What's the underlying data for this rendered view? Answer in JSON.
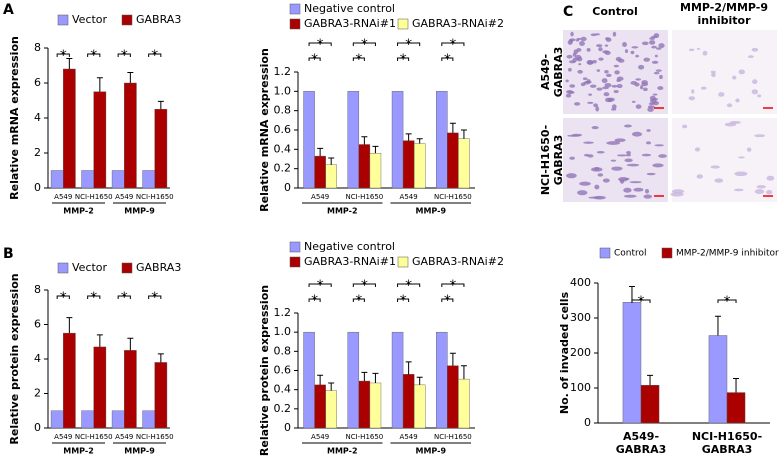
{
  "panels": [
    "A",
    "B",
    "C"
  ],
  "images": {
    "columns": [
      [
        "Control"
      ],
      [
        "MMP-2/MMP-9",
        "inhibitor"
      ]
    ],
    "rows": [
      [
        "A549-",
        "GABRA3"
      ],
      [
        "NCI-H1650-",
        "GABRA3"
      ]
    ]
  },
  "chart_data": [
    {
      "type": "bar",
      "ylabel": "Relative mRNA expression",
      "categories": [
        "A549",
        "NCI-H1650",
        "A549",
        "NCI-H1650"
      ],
      "groups": [
        "MMP-2",
        "MMP-9"
      ],
      "series": [
        {
          "name": "Vector",
          "color": "#9999ff",
          "values": [
            1,
            1,
            1,
            1
          ]
        },
        {
          "name": "GABRA3",
          "color": "#aa0000",
          "values": [
            6.8,
            5.5,
            6,
            4.5
          ],
          "errors": [
            0.6,
            0.8,
            0.6,
            0.45
          ]
        }
      ],
      "significance": [
        "*",
        "*",
        "*",
        "*"
      ],
      "ylim": [
        0,
        8
      ],
      "yticks": [
        0,
        2,
        4,
        6,
        8
      ]
    },
    {
      "type": "bar",
      "ylabel": "Relative mRNA expression",
      "categories": [
        "A549",
        "NCI-H1650",
        "A549",
        "NCI-H1650"
      ],
      "groups": [
        "MMP-2",
        "MMP-9"
      ],
      "series": [
        {
          "name": "Negative control",
          "color": "#9999ff",
          "values": [
            1,
            1,
            1,
            1
          ]
        },
        {
          "name": "GABRA3-RNAi#1",
          "color": "#aa0000",
          "values": [
            0.33,
            0.45,
            0.49,
            0.57
          ],
          "errors": [
            0.08,
            0.08,
            0.07,
            0.1
          ]
        },
        {
          "name": "GABRA3-RNAi#2",
          "color": "#ffff99",
          "values": [
            0.24,
            0.36,
            0.46,
            0.51
          ],
          "errors": [
            0.07,
            0.07,
            0.05,
            0.09
          ]
        }
      ],
      "significance": [
        [
          "*",
          "*"
        ],
        [
          "*",
          "*"
        ],
        [
          "*",
          "*"
        ],
        [
          "*",
          "*"
        ]
      ],
      "ylim": [
        0,
        1.2
      ],
      "yticks": [
        0,
        0.2,
        0.4,
        0.6,
        0.8,
        {
          "value": 1,
          "label": "1.0"
        },
        1.2
      ]
    },
    {
      "type": "bar",
      "ylabel": "Relative protein expression",
      "categories": [
        "A549",
        "NCI-H1650",
        "A549",
        "NCI-H1650"
      ],
      "groups": [
        "MMP-2",
        "MMP-9"
      ],
      "series": [
        {
          "name": "Vector",
          "color": "#9999ff",
          "values": [
            1,
            1,
            1,
            1
          ]
        },
        {
          "name": "GABRA3",
          "color": "#aa0000",
          "values": [
            5.5,
            4.7,
            4.5,
            3.8
          ],
          "errors": [
            0.9,
            0.7,
            0.7,
            0.5
          ]
        }
      ],
      "significance": [
        "*",
        "*",
        "*",
        "*"
      ],
      "ylim": [
        0,
        8
      ],
      "yticks": [
        0,
        2,
        4,
        6,
        8
      ]
    },
    {
      "type": "bar",
      "ylabel": "Relative protein expression",
      "categories": [
        "A549",
        "NCI-H1650",
        "A549",
        "NCI-H1650"
      ],
      "groups": [
        "MMP-2",
        "MMP-9"
      ],
      "series": [
        {
          "name": "Negative control",
          "color": "#9999ff",
          "values": [
            1,
            1,
            1,
            1
          ]
        },
        {
          "name": "GABRA3-RNAi#1",
          "color": "#aa0000",
          "values": [
            0.45,
            0.49,
            0.56,
            0.65
          ],
          "errors": [
            0.1,
            0.09,
            0.13,
            0.13
          ]
        },
        {
          "name": "GABRA3-RNAi#2",
          "color": "#ffff99",
          "values": [
            0.39,
            0.47,
            0.45,
            0.51
          ],
          "errors": [
            0.08,
            0.1,
            0.08,
            0.14
          ]
        }
      ],
      "significance": [
        [
          "*",
          "*"
        ],
        [
          "*",
          "*"
        ],
        [
          "*",
          "*"
        ],
        [
          "*",
          "*"
        ]
      ],
      "ylim": [
        0,
        1.2
      ],
      "yticks": [
        0,
        0.2,
        0.4,
        0.6,
        0.8,
        {
          "value": 1,
          "label": "1.0"
        },
        1.2
      ]
    },
    {
      "type": "bar",
      "ylabel": "No. of invaded cells",
      "categories": [
        [
          "A549-",
          "GABRA3"
        ],
        [
          "NCI-H1650-",
          "GABRA3"
        ]
      ],
      "series": [
        {
          "name": "Control",
          "color": "#9999ff",
          "values": [
            345,
            250
          ],
          "errors": [
            45,
            55
          ]
        },
        {
          "name": "MMP-2/MMP-9 inhibitor",
          "color": "#aa0000",
          "values": [
            108,
            87
          ],
          "errors": [
            28,
            40
          ]
        }
      ],
      "significance": [
        "*",
        "*"
      ],
      "ylim": [
        0,
        400
      ],
      "yticks": [
        0,
        100,
        200,
        300,
        400
      ]
    }
  ]
}
